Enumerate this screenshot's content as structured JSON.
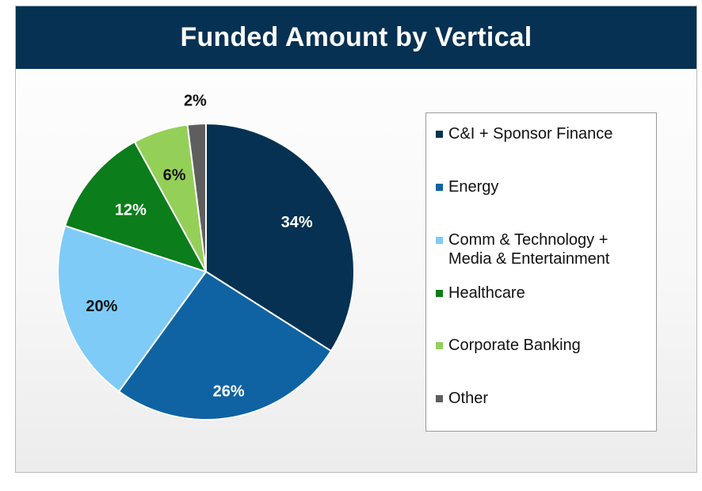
{
  "chart_data": {
    "type": "pie",
    "title": "Funded Amount by Vertical",
    "slices": [
      {
        "label": "C&I + Sponsor Finance",
        "value": 34,
        "display": "34%",
        "color": "#063152",
        "label_color": "#ffffff"
      },
      {
        "label": "Energy",
        "value": 26,
        "display": "26%",
        "color": "#0f63a3",
        "label_color": "#ffffff"
      },
      {
        "label": "Comm & Technology +\nMedia & Entertainment",
        "value": 20,
        "display": "20%",
        "color": "#7ecbf7",
        "label_color": "#111111"
      },
      {
        "label": "Healthcare",
        "value": 12,
        "display": "12%",
        "color": "#0b7d1a",
        "label_color": "#ffffff"
      },
      {
        "label": "Corporate Banking",
        "value": 6,
        "display": "6%",
        "color": "#94d058",
        "label_color": "#111111"
      },
      {
        "label": "Other",
        "value": 2,
        "display": "2%",
        "color": "#5e5e5e",
        "label_color": "#111111"
      }
    ],
    "legend_position": "right"
  }
}
